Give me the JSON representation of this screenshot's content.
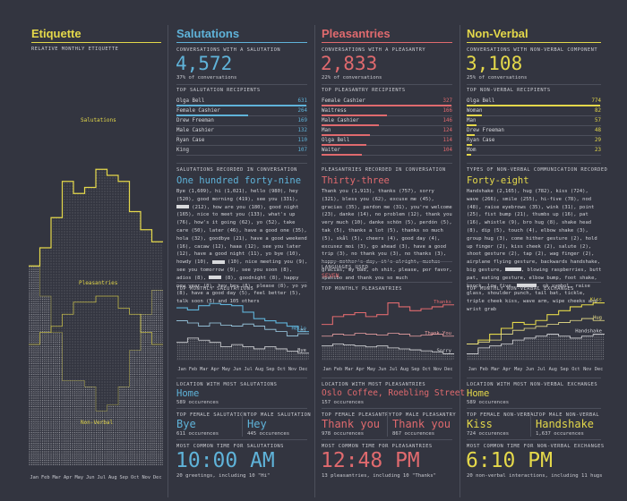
{
  "colors": {
    "blue": "#5fb3d9",
    "red": "#e06a6e",
    "yellow": "#e4d84a",
    "bg": "#333540",
    "text": "#d8d9dc"
  },
  "etiquette": {
    "title": "Etiquette",
    "subtitle": "RELATIVE MONTHLY ETIQUETTE",
    "label_sal": "Salutations",
    "label_ple": "Pleasantries",
    "label_nv": "Non-Verbal"
  },
  "salutations": {
    "title": "Salutations",
    "conv_label": "CONVERSATIONS WITH A SALUTATION",
    "conv_value": "4,572",
    "conv_note": "37% of conversations",
    "top_label": "TOP SALUTATION RECIPIENTS",
    "recipients": [
      {
        "name": "Olga Bell",
        "value": "631",
        "frac": 0.99
      },
      {
        "name": "Female Cashier",
        "value": "264",
        "frac": 0.55
      },
      {
        "name": "Drew Freeman",
        "value": "169",
        "frac": 0.0
      },
      {
        "name": "Male Cashier",
        "value": "132",
        "frac": 0.0
      },
      {
        "name": "Ryan Case",
        "value": "110",
        "frac": 0.0
      },
      {
        "name": "King",
        "value": "107",
        "frac": 0.0
      }
    ],
    "recorded_label": "SALUTATIONS RECORDED IN CONVERSATION",
    "recorded_value": "One hundred forty-nine",
    "recorded_text_a": "Bye (1,609), hi (1,021), hello (980), hey (520), good morning (419), see you (331), ",
    "recorded_text_b": " (212), how are you (180), good night (165), nice to meet you (133), what's up (76), how's it going (62), yo (52), take care (50), later (46), have a good one (35), hola (32), goodbye (21), have a good weekend (16), cacaw (12), haaa (12), see you later (12), have a good night (11), yo bye (10), howdy (10), ",
    "recorded_text_c": " (10), nice meeting you (9), see you tomorrow (9), see you soon (8), adios (8), ",
    "recorded_text_d": " (8), goodnight (8), happy new year (8), hey hey (8), please (8), yo yo (8), have a good day (5), feel better (5), talk soon (5) and 105 others",
    "monthly_label": "TOP MONTHLY SALUTATIONS",
    "loc_label": "LOCATION WITH MOST SALUTATIONS",
    "loc_value": "Home",
    "loc_note": "589 occurences",
    "female_label": "TOP FEMALE SALUTATION",
    "female_value": "Bye",
    "female_note": "611 occurences",
    "male_label": "TOP MALE SALUTATION",
    "male_value": "Hey",
    "male_note": "445 occurences",
    "time_label": "MOST COMMON TIME FOR SALUTATIONS",
    "time_value": "10:00 AM",
    "time_note": "20 greetings, including 10 \"Hi\""
  },
  "pleasantries": {
    "title": "Pleasantries",
    "conv_label": "CONVERSATIONS WITH A PLEASANTRY",
    "conv_value": "2,833",
    "conv_note": "22% of conversations",
    "top_label": "TOP PLEASANTRY RECIPIENTS",
    "recipients": [
      {
        "name": "Female Cashier",
        "value": "327",
        "frac": 0.99
      },
      {
        "name": "Waitress",
        "value": "166",
        "frac": 0.5
      },
      {
        "name": "Male Cashier",
        "value": "146",
        "frac": 0.44
      },
      {
        "name": "Man",
        "value": "124",
        "frac": 0.37
      },
      {
        "name": "Olga Bell",
        "value": "114",
        "frac": 0.34
      },
      {
        "name": "Waiter",
        "value": "104",
        "frac": 0.31
      }
    ],
    "recorded_label": "PLEASANTRIES RECORDED IN CONVERSATION",
    "recorded_value": "Thirty-three",
    "recorded_text": "Thank you (1,913), thanks (757), sorry (321), bless you (62), excuse me (45), gracias (35), pardon me (31), you're welcome (23), danke (14), no problem (12), thank you very much (10), danke schön (5), perdón (5), tak (5), thanks a lot (5), thanks so much (5), skål (5), cheers (4), good day (4), excusez moi (3), go ahead (3), have a good trip (3), no thank you (3), no thanks (3), happy mother's day, it's alright, muchas gracias, my bad, oh shit, please, por favor, spasibo and thank you so much",
    "lang_label": "LANGUAGES USED",
    "lang_value": "SEVEN",
    "monthly_label": "TOP MONTHLY PLEASANTRIES",
    "loc_label": "LOCATION WITH MOST PLEASANTRIES",
    "loc_value": "Oslo Coffee, Roebling Street",
    "loc_note": "157 occurences",
    "female_label": "TOP FEMALE PLEASANTRY",
    "female_value": "Thank you",
    "female_note": "978 occurences",
    "male_label": "TOP MALE PLEASANTRY",
    "male_value": "Thank you",
    "male_note": "867 occurences",
    "time_label": "MOST COMMON TIME FOR PLEASANTRIES",
    "time_value": "12:48 PM",
    "time_note": "13 pleasantries, including 10 \"Thanks\""
  },
  "nonverbal": {
    "title": "Non-Verbal",
    "conv_label": "CONVERSATIONS WITH NON-VERBAL COMPONENT",
    "conv_value": "3,108",
    "conv_note": "25% of conversations",
    "top_label": "TOP NON-VERBAL RECIPIENTS",
    "recipients": [
      {
        "name": "Olga Bell",
        "value": "774",
        "frac": 0.99
      },
      {
        "name": "Woman",
        "value": "82",
        "frac": 0.11
      },
      {
        "name": "Man",
        "value": "57",
        "frac": 0.07
      },
      {
        "name": "Drew Freeman",
        "value": "48",
        "frac": 0.06
      },
      {
        "name": "Ryan Case",
        "value": "29",
        "frac": 0.04
      },
      {
        "name": "Mom",
        "value": "23",
        "frac": 0.03
      }
    ],
    "recorded_label": "TYPES OF NON-VERBAL COMMUNICATION RECORDED",
    "recorded_value": "Forty-eight",
    "recorded_text_a": "Handshake (2,165), hug (782), kiss (724), wave (266), smile (255), hi-five (78), nod (48), raise eyebrows (35), wink (31), point (25), fist bump (21), thumbs up (16), pat (16), whistle (9), bro hug (8), shake head (8), dip (5), touch (4), elbow shake (3), group hug (3), come hither gesture (2), hold up finger (2), kiss cheek (2), salute (2), shoot gesture (2), tap (2), wag finger (2), airplane flying gesture, backwards handshake, big gesture, ",
    "recorded_text_b": ", blowing raspberries, butt pat, eating gesture, elbow bump, foot shake, knock, low five, ",
    "recorded_text_c": ", ok symbol, raise glass, shoulder punch, tail bat, tickle, triple cheek kiss, wave arm, wipe cheeks and wrist grab",
    "monthly_label": "TOP MONTHLY NON-VERBAL EXCHANGES",
    "loc_label": "LOCATION WITH MOST NON-VERBAL EXCHANGES",
    "loc_value": "Home",
    "loc_note": "589 occurences",
    "female_label": "TOP FEMALE NON-VERBAL",
    "female_value": "Kiss",
    "female_note": "724 occurences",
    "male_label": "TOP MALE NON-VERBAL",
    "male_value": "Handshake",
    "male_note": "1,637 occurences",
    "time_label": "MOST COMMON TIME FOR NON-VERBAL EXCHANGES",
    "time_value": "6:10 PM",
    "time_note": "20 non-verbal interactions, including 11 hugs"
  },
  "chart_data": [
    {
      "type": "area",
      "subtitle": "RELATIVE MONTHLY ETIQUETTE",
      "categories": [
        "Jan",
        "Feb",
        "Mar",
        "Apr",
        "May",
        "Jun",
        "Jul",
        "Aug",
        "Sep",
        "Oct",
        "Nov",
        "Dec"
      ],
      "ylim": [
        0,
        1
      ],
      "series": [
        {
          "name": "Salutations",
          "values": [
            0.42,
            0.48,
            0.58,
            0.7,
            0.66,
            0.68,
            0.74,
            0.72,
            0.7,
            0.6,
            0.54,
            0.5
          ]
        },
        {
          "name": "Pleasantries",
          "values": [
            0.16,
            0.2,
            0.22,
            0.26,
            0.3,
            0.3,
            0.32,
            0.32,
            0.28,
            0.26,
            0.2,
            0.16
          ]
        },
        {
          "name": "Non-Verbal",
          "values": [
            0.42,
            0.32,
            0.2,
            0.04,
            0.04,
            0.02,
            -0.06,
            -0.04,
            0.02,
            0.14,
            0.26,
            0.34
          ]
        }
      ]
    },
    {
      "type": "line",
      "subtitle": "TOP MONTHLY SALUTATIONS",
      "categories": [
        "Jan",
        "Feb",
        "Mar",
        "Apr",
        "May",
        "Jun",
        "Jul",
        "Aug",
        "Sep",
        "Oct",
        "Nov",
        "Dec"
      ],
      "series": [
        {
          "name": "Hello",
          "values": [
            72,
            70,
            74,
            76,
            75,
            74,
            68,
            62,
            60,
            58,
            55,
            50
          ]
        },
        {
          "name": "Hi",
          "values": [
            60,
            58,
            55,
            58,
            56,
            55,
            57,
            55,
            52,
            50,
            46,
            48
          ]
        },
        {
          "name": "Bye",
          "values": [
            40,
            44,
            42,
            40,
            36,
            38,
            36,
            34,
            36,
            34,
            32,
            30
          ]
        }
      ]
    },
    {
      "type": "line",
      "subtitle": "TOP MONTHLY PLEASANTRIES",
      "categories": [
        "Jan",
        "Feb",
        "Mar",
        "Apr",
        "May",
        "Jun",
        "Jul",
        "Aug",
        "Sep",
        "Oct",
        "Nov",
        "Dec"
      ],
      "series": [
        {
          "name": "Thanks",
          "values": [
            52,
            60,
            62,
            64,
            60,
            62,
            74,
            70,
            66,
            68,
            70,
            72
          ]
        },
        {
          "name": "Thank You",
          "values": [
            40,
            42,
            41,
            43,
            42,
            41,
            43,
            42,
            40,
            41,
            42,
            40
          ]
        },
        {
          "name": "Sorry",
          "values": [
            30,
            32,
            31,
            30,
            29,
            30,
            28,
            27,
            26,
            25,
            24,
            22
          ]
        }
      ]
    },
    {
      "type": "line",
      "subtitle": "TOP MONTHLY NON-VERBAL EXCHANGES",
      "categories": [
        "Jan",
        "Feb",
        "Mar",
        "Apr",
        "May",
        "Jun",
        "Jul",
        "Aug",
        "Sep",
        "Oct",
        "Nov",
        "Dec"
      ],
      "series": [
        {
          "name": "Kiss",
          "values": [
            40,
            44,
            50,
            56,
            62,
            60,
            64,
            70,
            74,
            78,
            80,
            82
          ]
        },
        {
          "name": "Hug",
          "values": [
            40,
            42,
            44,
            50,
            54,
            56,
            58,
            60,
            62,
            64,
            66,
            64
          ]
        },
        {
          "name": "Handshake",
          "values": [
            30,
            36,
            38,
            40,
            44,
            46,
            48,
            50,
            48,
            46,
            48,
            50
          ]
        }
      ]
    }
  ]
}
